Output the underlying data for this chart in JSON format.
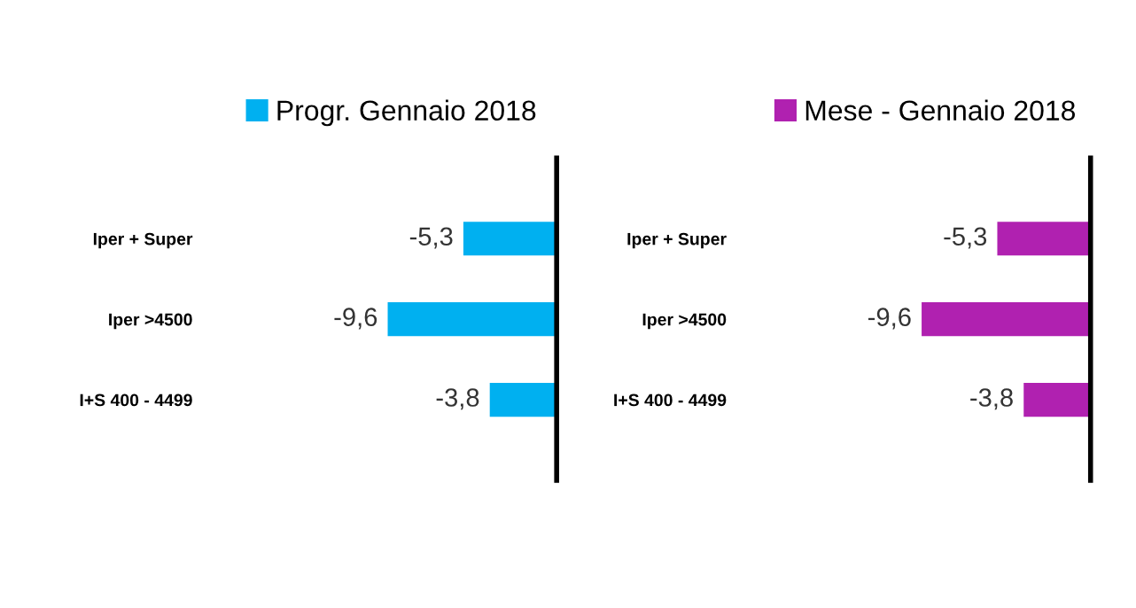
{
  "chart_data": [
    {
      "type": "bar",
      "orientation": "horizontal",
      "categories": [
        "Iper + Super",
        "Iper >4500",
        "I+S 400 - 4499"
      ],
      "series": [
        {
          "name": "Progr. Gennaio 2018",
          "color": "#00b0f0",
          "values": [
            -5.3,
            -9.6,
            -3.8
          ],
          "value_labels": [
            "-5,3",
            "-9,6",
            "-3,8"
          ]
        }
      ],
      "legend": "top",
      "tick_labels": "y",
      "grid": false
    },
    {
      "type": "bar",
      "orientation": "horizontal",
      "categories": [
        "Iper + Super",
        "Iper >4500",
        "I+S 400 - 4499"
      ],
      "series": [
        {
          "name": "Mese - Gennaio 2018",
          "color": "#b021b0",
          "values": [
            -5.3,
            -9.6,
            -3.8
          ],
          "value_labels": [
            "-5,3",
            "-9,6",
            "-3,8"
          ]
        }
      ],
      "legend": "top",
      "tick_labels": "y",
      "grid": false
    }
  ]
}
